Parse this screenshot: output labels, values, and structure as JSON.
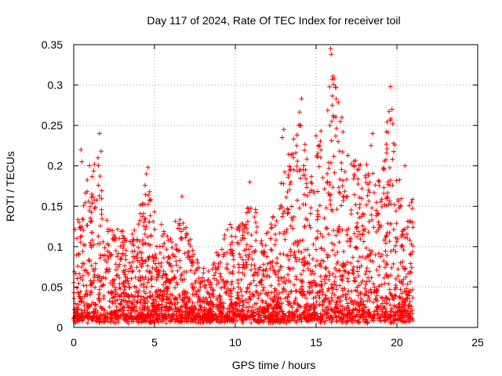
{
  "chart_data": {
    "type": "scatter",
    "title": "Day 117 of 2024, Rate Of TEC Index for receiver toil",
    "xlabel": "GPS time / hours",
    "ylabel": "ROTI / TECUs",
    "xlim": [
      0,
      25
    ],
    "ylim": [
      0,
      0.35
    ],
    "xticks": [
      0,
      5,
      10,
      15,
      20,
      25
    ],
    "xtick_labels": [
      "0",
      "5",
      "10",
      "15",
      "20",
      "25"
    ],
    "yticks": [
      0,
      0.05,
      0.1,
      0.15,
      0.2,
      0.25,
      0.3,
      0.35
    ],
    "ytick_labels": [
      "0",
      "0.05",
      "0.1",
      "0.15",
      "0.2",
      "0.25",
      "0.3",
      "0.35"
    ],
    "grid": true,
    "marker": "+",
    "series_color": "#ff0000",
    "data_extent_hours": [
      0,
      21
    ],
    "envelope": {
      "hours": [
        0,
        0.5,
        1.0,
        1.5,
        2.0,
        2.5,
        3.0,
        3.5,
        4.0,
        4.5,
        5.0,
        5.5,
        6.0,
        6.5,
        7.0,
        7.5,
        8.0,
        8.5,
        9.0,
        9.5,
        10.0,
        10.5,
        11.0,
        11.5,
        12.0,
        12.5,
        13.0,
        13.5,
        14.0,
        14.5,
        15.0,
        15.5,
        16.0,
        16.5,
        17.0,
        17.5,
        18.0,
        18.5,
        19.0,
        19.5,
        20.0,
        20.5,
        21.0
      ],
      "typical_max_roti": [
        0.12,
        0.15,
        0.2,
        0.22,
        0.14,
        0.13,
        0.12,
        0.11,
        0.14,
        0.19,
        0.15,
        0.12,
        0.11,
        0.16,
        0.12,
        0.09,
        0.07,
        0.07,
        0.11,
        0.13,
        0.12,
        0.14,
        0.17,
        0.13,
        0.12,
        0.15,
        0.2,
        0.24,
        0.28,
        0.2,
        0.22,
        0.26,
        0.34,
        0.26,
        0.22,
        0.2,
        0.23,
        0.2,
        0.19,
        0.3,
        0.2,
        0.15,
        0.16
      ],
      "typical_base_roti": 0.01
    },
    "outliers": [
      {
        "x": 0.45,
        "y": 0.22
      },
      {
        "x": 0.5,
        "y": 0.205
      },
      {
        "x": 1.6,
        "y": 0.24
      },
      {
        "x": 1.7,
        "y": 0.218
      },
      {
        "x": 1.5,
        "y": 0.21
      },
      {
        "x": 4.6,
        "y": 0.198
      },
      {
        "x": 4.5,
        "y": 0.19
      },
      {
        "x": 6.7,
        "y": 0.162
      },
      {
        "x": 10.9,
        "y": 0.18
      },
      {
        "x": 13.0,
        "y": 0.245
      },
      {
        "x": 12.9,
        "y": 0.235
      },
      {
        "x": 14.1,
        "y": 0.283
      },
      {
        "x": 14.0,
        "y": 0.25
      },
      {
        "x": 13.8,
        "y": 0.225
      },
      {
        "x": 15.0,
        "y": 0.237
      },
      {
        "x": 15.9,
        "y": 0.345
      },
      {
        "x": 15.95,
        "y": 0.338
      },
      {
        "x": 16.0,
        "y": 0.307
      },
      {
        "x": 16.1,
        "y": 0.26
      },
      {
        "x": 15.85,
        "y": 0.25
      },
      {
        "x": 16.6,
        "y": 0.26
      },
      {
        "x": 16.5,
        "y": 0.255
      },
      {
        "x": 18.5,
        "y": 0.24
      },
      {
        "x": 18.4,
        "y": 0.225
      },
      {
        "x": 19.6,
        "y": 0.298
      },
      {
        "x": 19.7,
        "y": 0.27
      },
      {
        "x": 19.75,
        "y": 0.252
      },
      {
        "x": 20.5,
        "y": 0.2
      },
      {
        "x": 20.9,
        "y": 0.155
      }
    ]
  }
}
